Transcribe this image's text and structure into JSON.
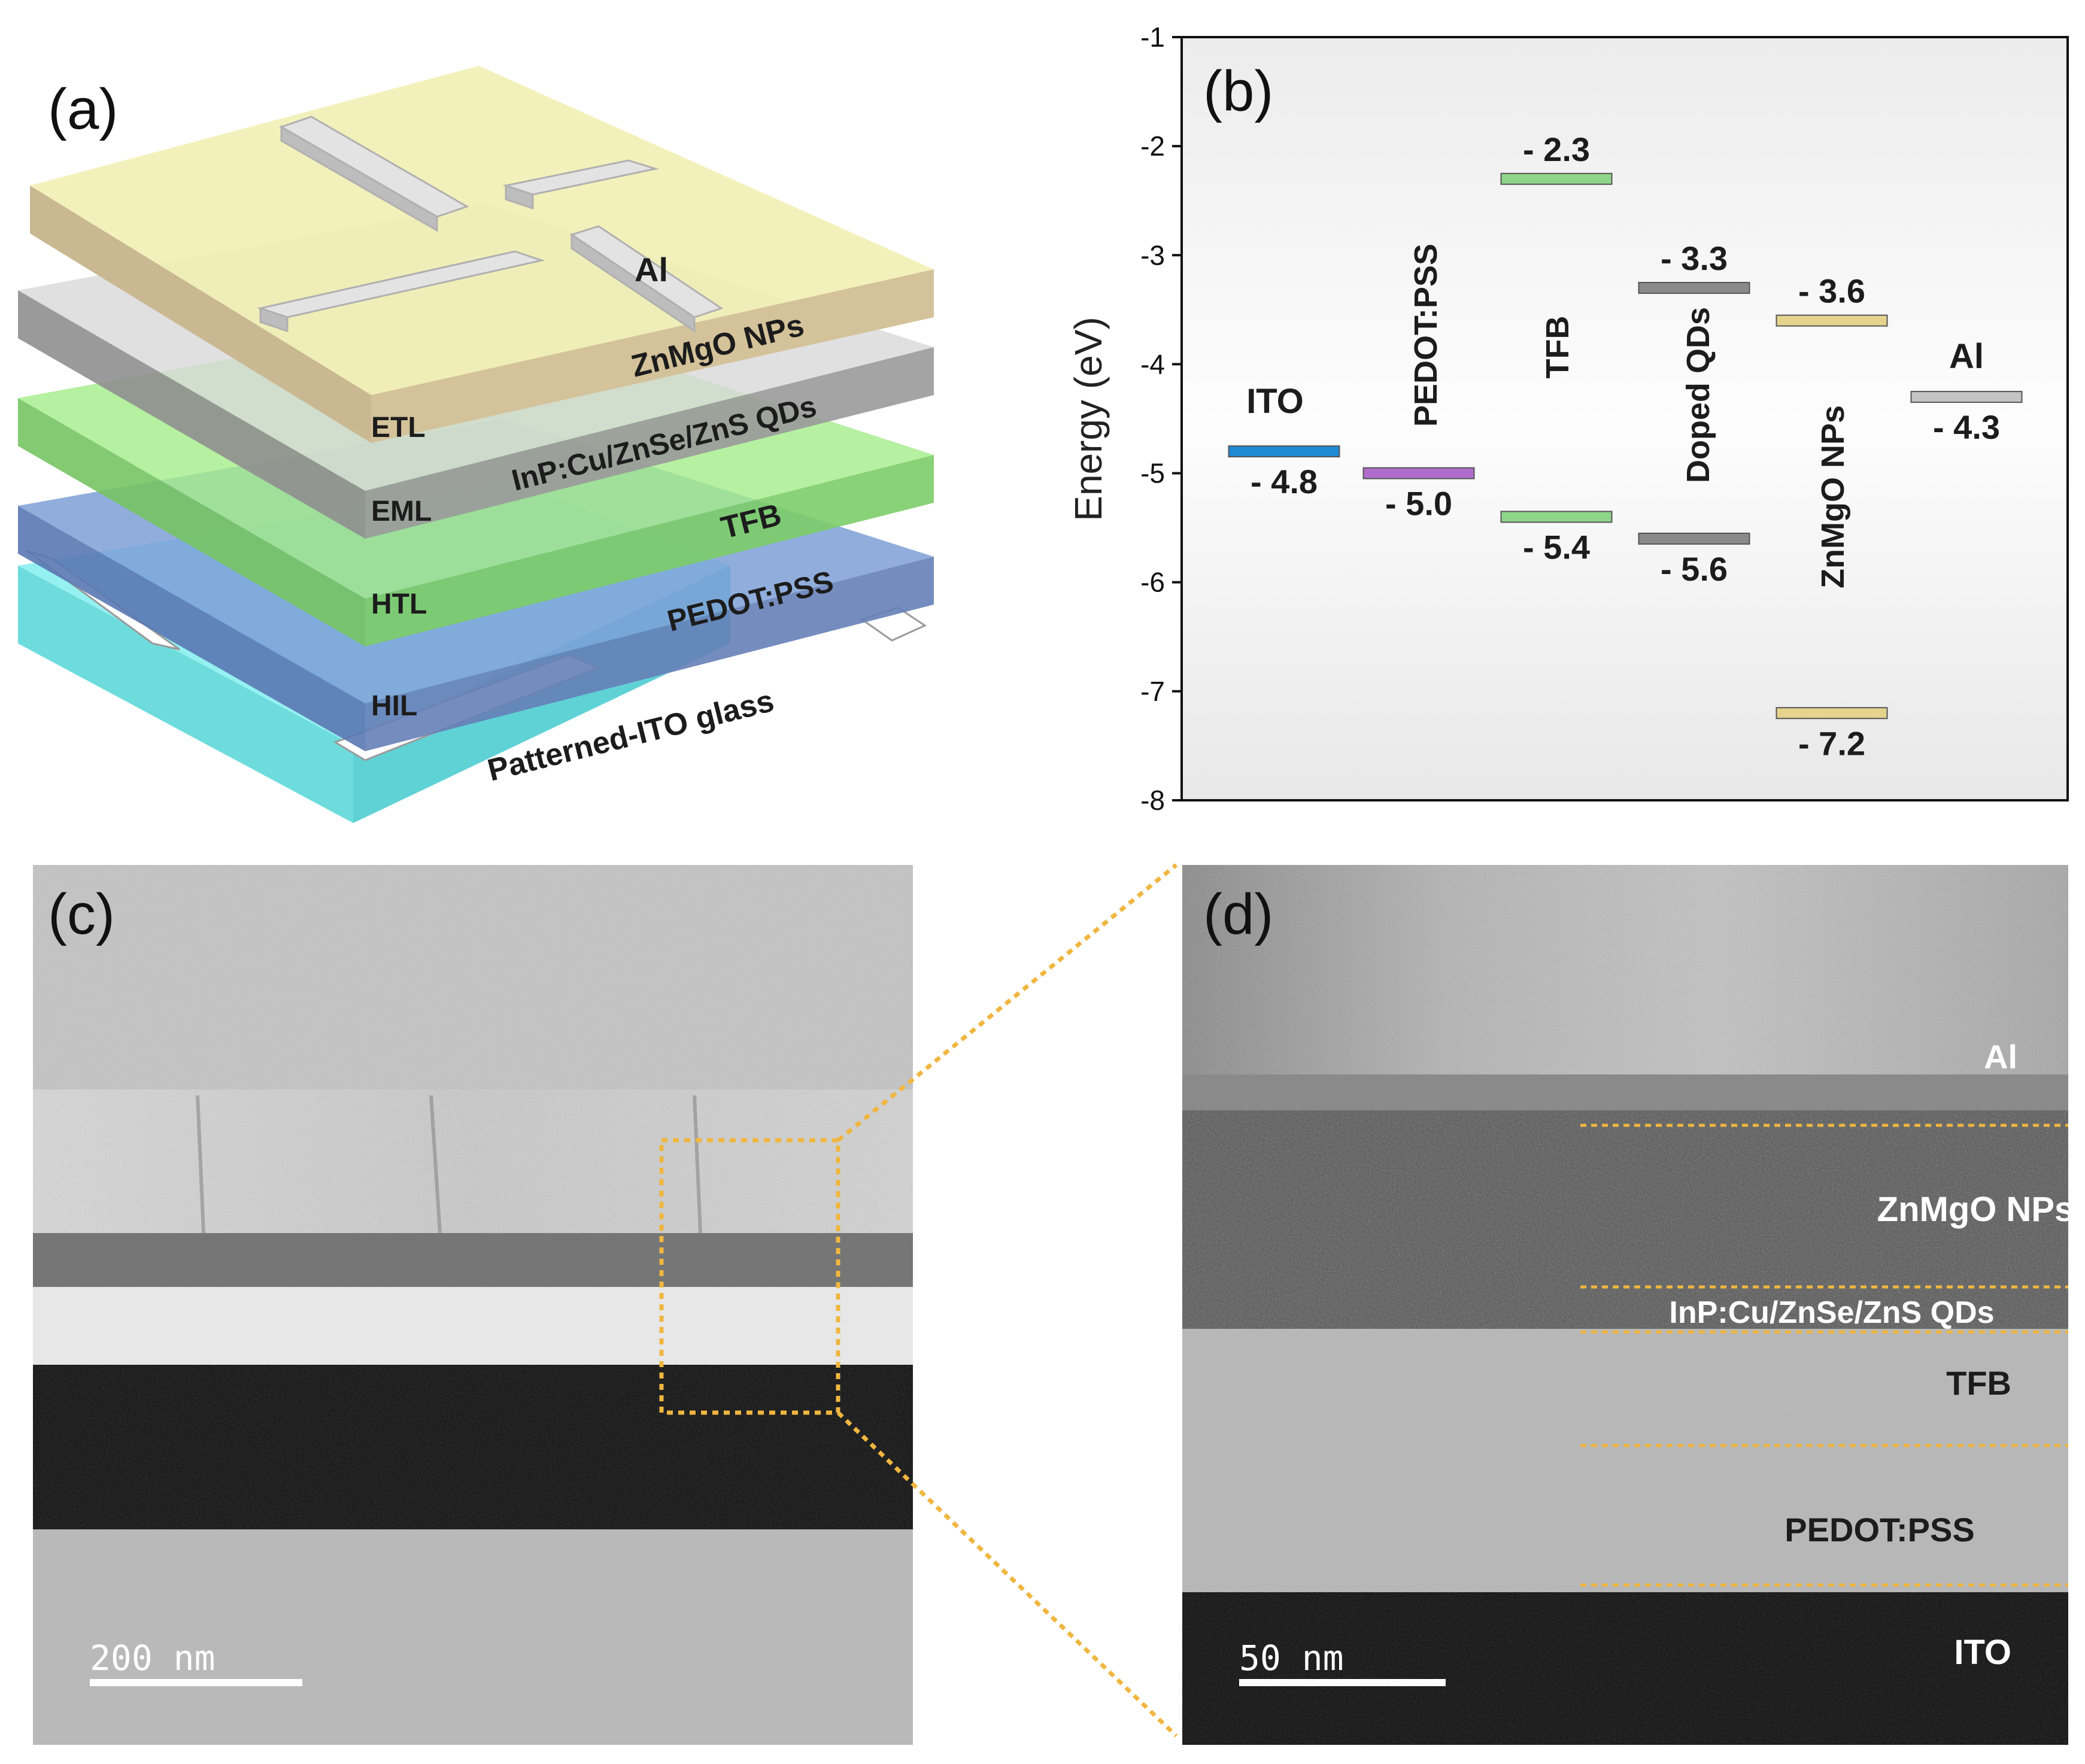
{
  "panels": {
    "a": "(a)",
    "b": "(b)",
    "c": "(c)",
    "d": "(d)"
  },
  "device": {
    "electrode": "Al",
    "layers": [
      {
        "role": "ETL",
        "material": "ZnMgO NPs",
        "color": "#e9e6a8"
      },
      {
        "role": "EML",
        "material": "InP:Cu/ZnSe/ZnS QDs",
        "color": "#b8b8b8"
      },
      {
        "role": "HTL",
        "material": "TFB",
        "color": "#96e07f"
      },
      {
        "role": "HIL",
        "material": "PEDOT:PSS",
        "color": "#6e8fc6"
      },
      {
        "role": "",
        "material": "Patterned-ITO glass",
        "color": "#7ee6e6"
      }
    ]
  },
  "chart_data": {
    "type": "energy-level diagram",
    "ylabel": "Energy (eV)",
    "ylim": [
      -8,
      -1
    ],
    "yticks": [
      "-1",
      "-2",
      "-3",
      "-4",
      "-5",
      "-6",
      "-7",
      "-8"
    ],
    "materials": [
      {
        "name": "ITO",
        "levels": [
          -4.8
        ],
        "labels": [
          "- 4.8"
        ],
        "color": "#1e8ad6"
      },
      {
        "name": "PEDOT:PSS",
        "levels": [
          -5.0
        ],
        "labels": [
          "- 5.0"
        ],
        "color": "#b06ccc"
      },
      {
        "name": "TFB",
        "levels": [
          -2.3,
          -5.4
        ],
        "labels": [
          "- 2.3",
          "- 5.4"
        ],
        "color": "#8fd68b"
      },
      {
        "name": "Doped QDs",
        "levels": [
          -3.3,
          -5.6
        ],
        "labels": [
          "- 3.3",
          "- 5.6"
        ],
        "color": "#8a8a8a"
      },
      {
        "name": "ZnMgO NPs",
        "levels": [
          -3.6,
          -7.2
        ],
        "labels": [
          "- 3.6",
          "- 7.2"
        ],
        "color": "#e6d38e"
      },
      {
        "name": "Al",
        "levels": [
          -4.3
        ],
        "labels": [
          "- 4.3"
        ],
        "color": "#c4c4c4"
      }
    ]
  },
  "tem_c": {
    "scale_bar": "200 nm"
  },
  "tem_d": {
    "scale_bar": "50 nm",
    "layer_labels": [
      "Al",
      "ZnMgO NPs",
      "InP:Cu/ZnSe/ZnS QDs",
      "TFB",
      "PEDOT:PSS",
      "ITO"
    ]
  }
}
